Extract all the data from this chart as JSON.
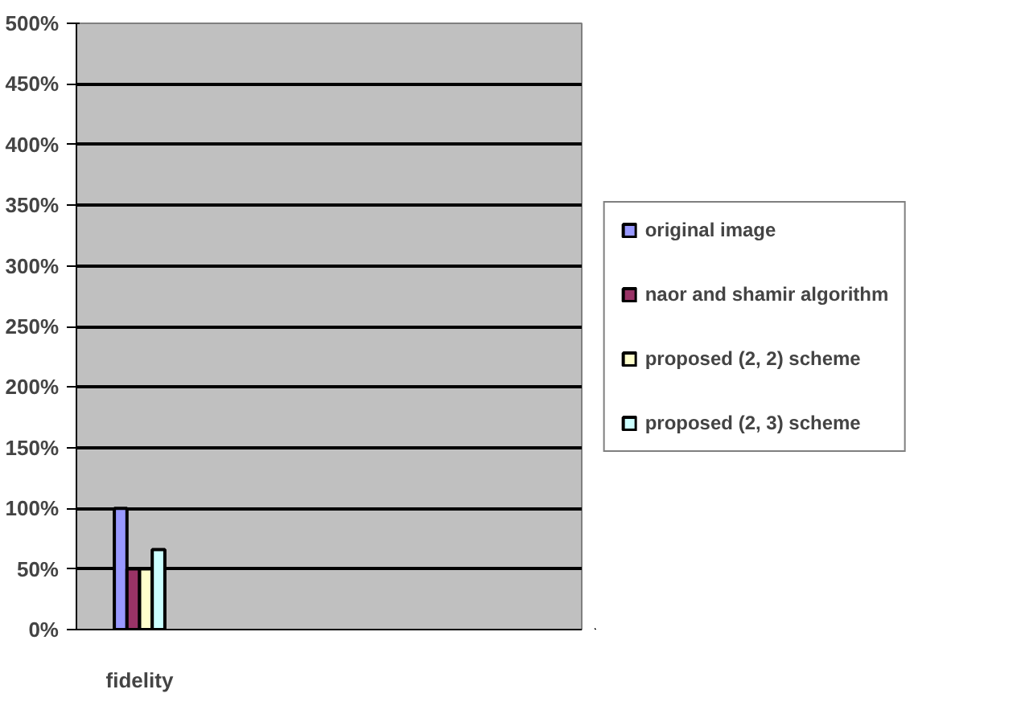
{
  "chart_data": {
    "type": "bar",
    "categories": [
      "fidelity",
      null,
      null,
      null
    ],
    "series": [
      {
        "name": "original image",
        "color": "#9999ff",
        "values": [
          100,
          null,
          null,
          null
        ]
      },
      {
        "name": "naor and shamir algorithm",
        "color": "#993366",
        "values": [
          50,
          null,
          null,
          null
        ]
      },
      {
        "name": "proposed (2, 2) scheme",
        "color": "#ffffcc",
        "values": [
          50,
          null,
          null,
          null
        ]
      },
      {
        "name": "proposed (2, 3) scheme",
        "color": "#ccffff",
        "values": [
          66,
          null,
          null,
          null
        ]
      }
    ],
    "ylim": [
      0,
      500
    ],
    "yticks": [
      {
        "value": 0,
        "label": "0%"
      },
      {
        "value": 50,
        "label": "50%"
      },
      {
        "value": 100,
        "label": "100%"
      },
      {
        "value": 150,
        "label": "150%"
      },
      {
        "value": 200,
        "label": "200%"
      },
      {
        "value": 250,
        "label": "250%"
      },
      {
        "value": 300,
        "label": "300%"
      },
      {
        "value": 350,
        "label": "350%"
      },
      {
        "value": 400,
        "label": "400%"
      },
      {
        "value": 450,
        "label": "450%"
      },
      {
        "value": 500,
        "label": "500%"
      }
    ],
    "grid": "y",
    "legend": "right"
  }
}
